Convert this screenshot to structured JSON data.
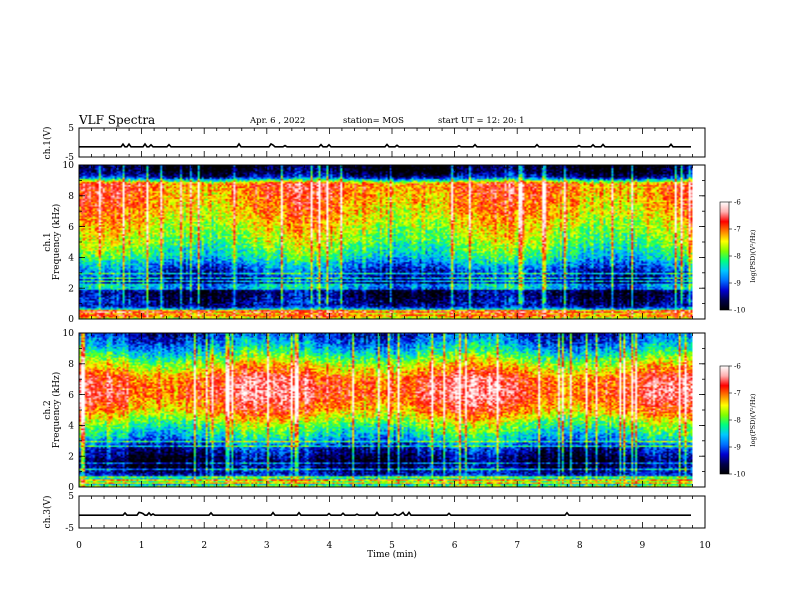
{
  "header": {
    "title": "VLF Spectra",
    "date": "Apr. 6 , 2022",
    "station": "station= MOS",
    "start": "start UT = 12: 20: 1"
  },
  "chart_data": {
    "type": "heatmap",
    "x": {
      "label": "Time (min)",
      "range": [
        0,
        10
      ],
      "ticks": [
        "0",
        "1",
        "2",
        "3",
        "4",
        "5",
        "6",
        "7",
        "8",
        "9",
        "10"
      ]
    },
    "panels": [
      {
        "id": "ch1-waveform",
        "kind": "line",
        "ylabel": "ch.1(V)",
        "ylim": [
          -5,
          5
        ],
        "yticks": [
          "5",
          "-5"
        ],
        "level": -1.5,
        "data_end_min": 9.8
      },
      {
        "id": "ch1-spectrogram",
        "kind": "spectrogram",
        "ylabel": "ch.1 Frequency (kHz)",
        "ylabel_lines": [
          "ch.1",
          "Frequency (kHz)"
        ],
        "ylim": [
          0,
          10
        ],
        "yticks": [
          "0",
          "2",
          "4",
          "6",
          "8",
          "10"
        ],
        "data_end_min": 9.8,
        "spectral_profile": [
          {
            "f": 0.0,
            "level": -8.6
          },
          {
            "f": 0.4,
            "level": -7.2
          },
          {
            "f": 0.8,
            "level": -9.4
          },
          {
            "f": 1.6,
            "level": -9.7
          },
          {
            "f": 2.4,
            "level": -9.4
          },
          {
            "f": 3.2,
            "level": -9.1
          },
          {
            "f": 4.0,
            "level": -8.4
          },
          {
            "f": 5.0,
            "level": -7.9
          },
          {
            "f": 6.0,
            "level": -7.6
          },
          {
            "f": 7.0,
            "level": -7.3
          },
          {
            "f": 8.0,
            "level": -7.1
          },
          {
            "f": 8.8,
            "level": -7.0
          },
          {
            "f": 9.2,
            "level": -9.4
          },
          {
            "f": 9.6,
            "level": -9.9
          },
          {
            "f": 10.0,
            "level": -10.0
          }
        ]
      },
      {
        "id": "ch2-spectrogram",
        "kind": "spectrogram",
        "ylabel": "ch.2 Frequency (kHz)",
        "ylabel_lines": [
          "ch.2",
          "Frequency (kHz)"
        ],
        "ylim": [
          0,
          10
        ],
        "yticks": [
          "0",
          "2",
          "4",
          "6",
          "8",
          "10"
        ],
        "data_end_min": 9.8,
        "spectral_profile": [
          {
            "f": 0.0,
            "level": -8.8
          },
          {
            "f": 0.4,
            "level": -7.8
          },
          {
            "f": 0.8,
            "level": -9.3
          },
          {
            "f": 1.6,
            "level": -9.8
          },
          {
            "f": 2.4,
            "level": -9.4
          },
          {
            "f": 3.2,
            "level": -8.6
          },
          {
            "f": 4.0,
            "level": -8.0
          },
          {
            "f": 5.0,
            "level": -7.1
          },
          {
            "f": 6.0,
            "level": -6.7
          },
          {
            "f": 7.0,
            "level": -6.8
          },
          {
            "f": 8.0,
            "level": -7.6
          },
          {
            "f": 8.8,
            "level": -8.4
          },
          {
            "f": 9.4,
            "level": -8.9
          },
          {
            "f": 10.0,
            "level": -9.2
          }
        ]
      },
      {
        "id": "ch3-waveform",
        "kind": "line",
        "ylabel": "ch.3(V)",
        "ylim": [
          -5,
          5
        ],
        "yticks": [
          "5",
          "-5"
        ],
        "level": -1.0,
        "data_end_min": 9.8
      }
    ],
    "colorbar": {
      "label": "log(PSD)(V²/Hz)",
      "range": [
        -10,
        -6
      ],
      "ticks": [
        "-6",
        "-7",
        "-8",
        "-9",
        "-10"
      ],
      "colormap": [
        "#000000",
        "#00004a",
        "#0000d0",
        "#0070ff",
        "#00c8ff",
        "#00ff80",
        "#80ff00",
        "#ffff00",
        "#ff8000",
        "#ff0000",
        "#ffb0b0",
        "#ffffff"
      ]
    }
  }
}
